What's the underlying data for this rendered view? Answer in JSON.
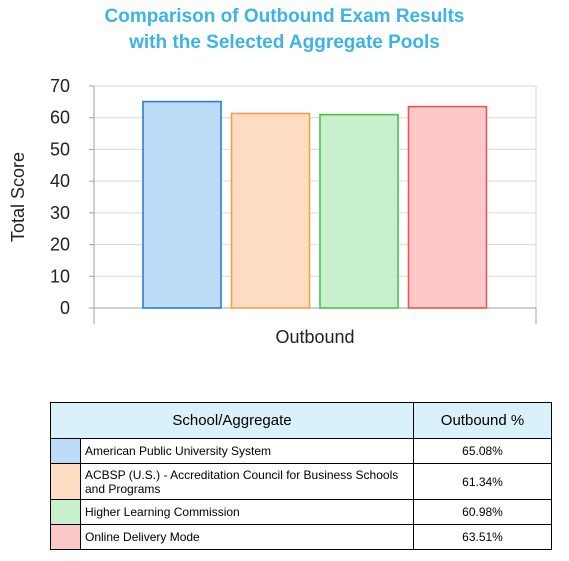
{
  "title_lines": [
    "Comparison of Outbound Exam Results",
    "with the Selected Aggregate Pools"
  ],
  "chart_data": {
    "type": "bar",
    "title": "Comparison of Outbound Exam Results with the Selected Aggregate Pools",
    "categories": [
      "Outbound"
    ],
    "xlabel": "Outbound",
    "ylabel": "Total Score",
    "ylim": [
      0,
      70
    ],
    "yticks": [
      0,
      10,
      20,
      30,
      40,
      50,
      60,
      70
    ],
    "grid": true,
    "series": [
      {
        "name": "American Public University System",
        "values": [
          65.08
        ],
        "fill": "#bcdcf7",
        "stroke": "#2a7fd4"
      },
      {
        "name": "ACBSP (U.S.) - Accreditation Council for Business Schools and Programs",
        "values": [
          61.34
        ],
        "fill": "#fddcc2",
        "stroke": "#f5a04a"
      },
      {
        "name": "Higher Learning Commission",
        "values": [
          60.98
        ],
        "fill": "#c8f0cc",
        "stroke": "#4cc24c"
      },
      {
        "name": "Online Delivery Mode",
        "values": [
          63.51
        ],
        "fill": "#fdc8c8",
        "stroke": "#e05a50"
      }
    ]
  },
  "table": {
    "headers": [
      "School/Aggregate",
      "Outbound %"
    ],
    "rows": [
      {
        "name": "American Public University System",
        "value": "65.08%",
        "color": "#bcdcf7"
      },
      {
        "name": "ACBSP (U.S.) - Accreditation Council for Business Schools and Programs",
        "value": "61.34%",
        "color": "#fddcc2"
      },
      {
        "name": "Higher Learning Commission",
        "value": "60.98%",
        "color": "#c8f0cc"
      },
      {
        "name": "Online Delivery Mode",
        "value": "63.51%",
        "color": "#fdc8c8"
      }
    ]
  }
}
